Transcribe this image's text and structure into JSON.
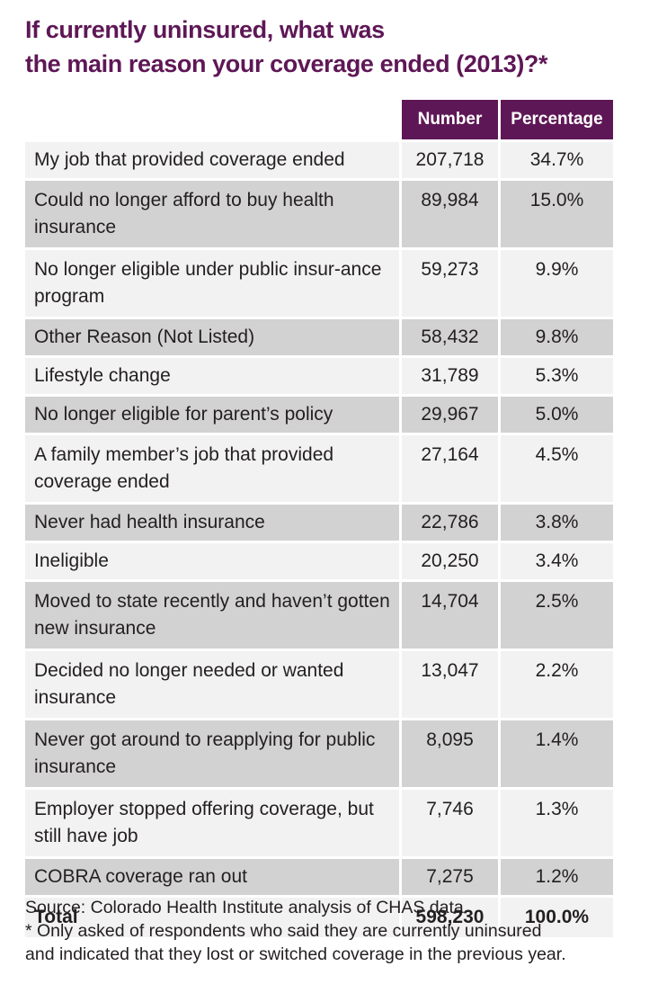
{
  "title_line1": "If currently uninsured, what was",
  "title_line2": "the main reason your coverage ended (2013)?*",
  "columns": [
    "",
    "Number",
    "Percentage"
  ],
  "chart_data": {
    "type": "table",
    "columns": [
      "Number",
      "Percentage"
    ],
    "rows": [
      {
        "reason": "My job that provided coverage ended",
        "number": "207,718",
        "percentage": "34.7%"
      },
      {
        "reason": "Could no longer afford to buy health insurance",
        "number": "89,984",
        "percentage": "15.0%"
      },
      {
        "reason": "No longer eligible under public insur-ance program",
        "number": "59,273",
        "percentage": "9.9%"
      },
      {
        "reason": "Other Reason (Not Listed)",
        "number": "58,432",
        "percentage": "9.8%"
      },
      {
        "reason": "Lifestyle change",
        "number": "31,789",
        "percentage": "5.3%"
      },
      {
        "reason": "No longer eligible for parent’s policy",
        "number": "29,967",
        "percentage": "5.0%"
      },
      {
        "reason": "A family member’s job that provided coverage ended",
        "number": "27,164",
        "percentage": "4.5%"
      },
      {
        "reason": "Never had health insurance",
        "number": "22,786",
        "percentage": "3.8%"
      },
      {
        "reason": "Ineligible",
        "number": "20,250",
        "percentage": "3.4%"
      },
      {
        "reason": "Moved to state recently and haven’t gotten new insurance",
        "number": "14,704",
        "percentage": "2.5%"
      },
      {
        "reason": "Decided no longer needed or wanted insurance",
        "number": "13,047",
        "percentage": "2.2%"
      },
      {
        "reason": "Never got around to reapplying for public insurance",
        "number": "8,095",
        "percentage": "1.4%"
      },
      {
        "reason": "Employer stopped offering coverage, but still have job",
        "number": "7,746",
        "percentage": "1.3%"
      },
      {
        "reason": "COBRA coverage ran out",
        "number": "7,275",
        "percentage": "1.2%"
      }
    ],
    "total": {
      "label": "Total",
      "number": "598,230",
      "percentage": "100.0%"
    }
  },
  "source_note": "Source: Colorado Health Institute analysis of CHAS data",
  "footnote_line1": "* Only asked of respondents who said they are currently uninsured",
  "footnote_line2": "and indicated that they lost or switched coverage in the previous year.",
  "colors": {
    "header_bg": "#5e1756",
    "title": "#5e1756",
    "row_light": "#f2f2f2",
    "row_dark": "#d3d2d2"
  }
}
